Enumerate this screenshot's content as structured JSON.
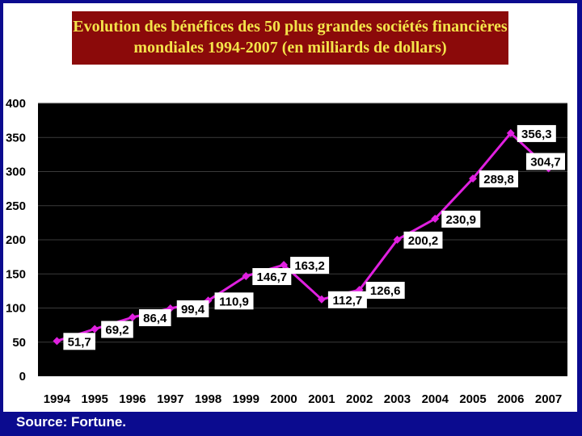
{
  "chart_data": {
    "type": "line",
    "title": "Evolution des bénéfices des 50 plus grandes sociétés financières mondiales 1994-2007 (en milliards de dollars)",
    "title_lines": [
      "Evolution des bénéfices des 50 plus grandes sociétés financières",
      "mondiales 1994-2007 (en milliards de dollars)"
    ],
    "categories": [
      "1994",
      "1995",
      "1996",
      "1997",
      "1998",
      "1999",
      "2000",
      "2001",
      "2002",
      "2003",
      "2004",
      "2005",
      "2006",
      "2007"
    ],
    "values": [
      51.7,
      69.2,
      86.4,
      99.4,
      110.9,
      146.7,
      163.2,
      112.7,
      126.6,
      200.2,
      230.9,
      289.8,
      356.3,
      304.7
    ],
    "value_labels": [
      "51,7",
      "69,2",
      "86,4",
      "99,4",
      "110,9",
      "146,7",
      "163,2",
      "112,7",
      "126,6",
      "200,2",
      "230,9",
      "289,8",
      "356,3",
      "304,7"
    ],
    "ylim": [
      0,
      400
    ],
    "yticks": [
      "0",
      "50",
      "100",
      "150",
      "200",
      "250",
      "300",
      "350",
      "400"
    ],
    "ytick_values": [
      0,
      50,
      100,
      150,
      200,
      250,
      300,
      350,
      400
    ],
    "grid": true,
    "legend": "none",
    "colors": {
      "line": "#e020e0",
      "plot_background": "#000000",
      "gridline": "#3a3a3a",
      "label_box": "#ffffff",
      "title_background": "#8b0a0a",
      "title_text": "#f4e44a",
      "slide_background": "#0b0b8f"
    }
  },
  "footer": {
    "source": "Source: Fortune."
  }
}
